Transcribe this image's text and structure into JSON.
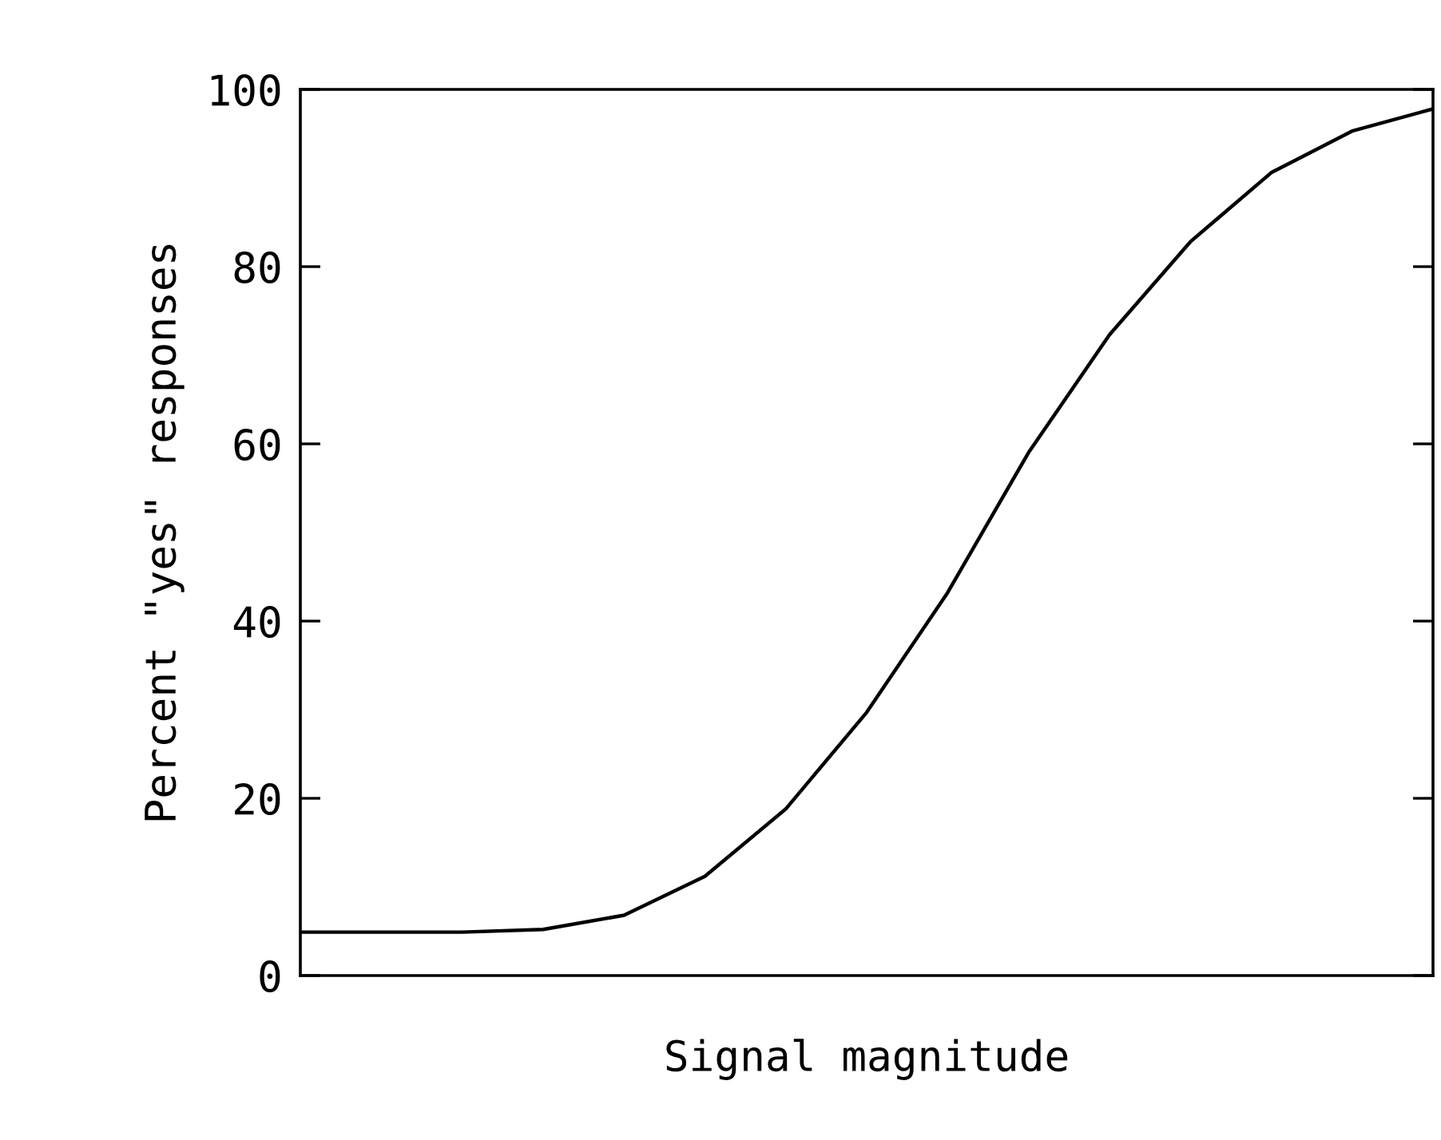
{
  "chart_data": {
    "type": "line",
    "xlabel": "Signal magnitude",
    "ylabel": "Percent \"yes\" responses",
    "categories": [
      null,
      null,
      null,
      null,
      null,
      null,
      null,
      null,
      null,
      null,
      null,
      null,
      null,
      null,
      null
    ],
    "series": [
      {
        "color": "#000000",
        "values": [
          4.9,
          4.9,
          4.9,
          5.2,
          6.8,
          11.2,
          18.8,
          29.7,
          43.2,
          59.0,
          72.3,
          82.8,
          90.6,
          95.3,
          97.8
        ]
      }
    ],
    "ylim": [
      0,
      100
    ],
    "yticks": [
      0,
      20,
      40,
      60,
      80,
      100
    ],
    "grid": false,
    "legend": false,
    "marker": "none",
    "line_style": "solid"
  }
}
